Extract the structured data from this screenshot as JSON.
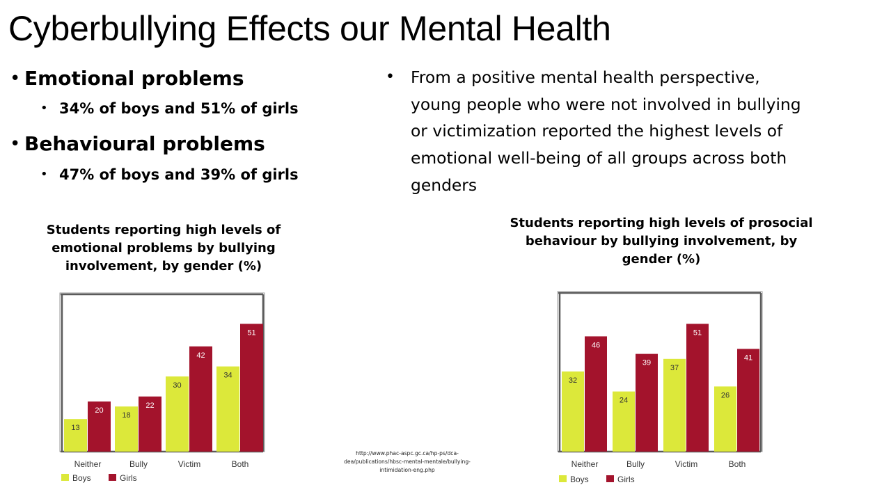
{
  "slide": {
    "title": "Cyberbullying Effects our Mental Health",
    "bullets": [
      {
        "text": "Emotional problems",
        "sub": "34% of boys and 51% of girls"
      },
      {
        "text": "Behavioural problems",
        "sub": "47% of boys and 39% of girls"
      }
    ],
    "right_lines": [
      "From a positive mental health perspective,",
      "young people who were not involved in bullying",
      "or victimization reported the highest levels of",
      "emotional well-being of all groups across both",
      "genders"
    ],
    "source_lines": [
      "http://www.phac-aspc.gc.ca/hp-ps/dca-",
      "dea/publications/hbsc-mental-mentale/bullying-",
      "intimidation-eng.php"
    ],
    "bullet_glyph": "•"
  },
  "chart_data": [
    {
      "type": "bar",
      "title_lines": [
        "Students reporting high levels of",
        "emotional problems by bullying",
        "involvement, by gender (%)"
      ],
      "categories": [
        "Neither",
        "Bully",
        "Victim",
        "Both"
      ],
      "series": [
        {
          "name": "Boys",
          "values": [
            13,
            18,
            30,
            34
          ],
          "color": "#dce83a"
        },
        {
          "name": "Girls",
          "values": [
            20,
            22,
            42,
            51
          ],
          "color": "#a3132c"
        }
      ],
      "ylim": [
        0,
        60
      ],
      "grid": false,
      "legend": "bottom-left"
    },
    {
      "type": "bar",
      "title_lines": [
        "Students reporting high levels of prosocial",
        "behaviour by bullying involvement, by",
        "gender (%)"
      ],
      "categories": [
        "Neither",
        "Bully",
        "Victim",
        "Both"
      ],
      "series": [
        {
          "name": "Boys",
          "values": [
            32,
            24,
            37,
            26
          ],
          "color": "#dce83a"
        },
        {
          "name": "Girls",
          "values": [
            46,
            39,
            51,
            41
          ],
          "color": "#a3132c"
        }
      ],
      "ylim": [
        0,
        60
      ],
      "grid": false,
      "legend": "bottom-left"
    }
  ]
}
